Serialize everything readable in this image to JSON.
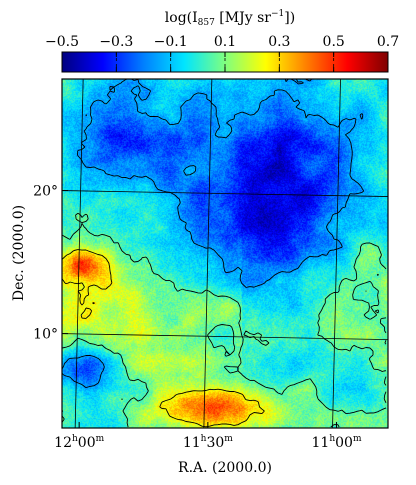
{
  "chart_data": {
    "type": "heatmap",
    "title": "",
    "colorbar": {
      "label_main": "log(I",
      "label_sub": "857",
      "label_unit": " [MJy sr",
      "label_exp": "−1",
      "label_close": "])",
      "min": -0.5,
      "max": 0.7,
      "ticks": [
        {
          "value": -0.5,
          "label": "−0.5"
        },
        {
          "value": -0.3,
          "label": "−0.3"
        },
        {
          "value": -0.1,
          "label": "−0.1"
        },
        {
          "value": 0.1,
          "label": "0.1"
        },
        {
          "value": 0.3,
          "label": "0.3"
        },
        {
          "value": 0.5,
          "label": "0.5"
        },
        {
          "value": 0.7,
          "label": "0.7"
        }
      ],
      "colormap": [
        "#00007f",
        "#0000ff",
        "#007fff",
        "#00e5ff",
        "#7fff7f",
        "#ffff00",
        "#ff7f00",
        "#ff0000",
        "#7f0000"
      ]
    },
    "xlabel": "R.A. (2000.0)",
    "ylabel": "Dec. (2000.0)",
    "xlim_minutes_of_ra": [
      724,
      648
    ],
    "ylim_deg": [
      3.4,
      27.8
    ],
    "xticks": [
      {
        "value": 720,
        "h": "12",
        "m": "00"
      },
      {
        "value": 690,
        "h": "11",
        "m": "30"
      },
      {
        "value": 660,
        "h": "11",
        "m": "00"
      }
    ],
    "yticks": [
      {
        "value": 10,
        "label": "10°"
      },
      {
        "value": 20,
        "label": "20°"
      }
    ],
    "features": {
      "faint_region_center": [
        675,
        19.5
      ],
      "bright_filament_start": [
        695,
        7
      ],
      "bright_spot_left": [
        719,
        15
      ]
    }
  }
}
